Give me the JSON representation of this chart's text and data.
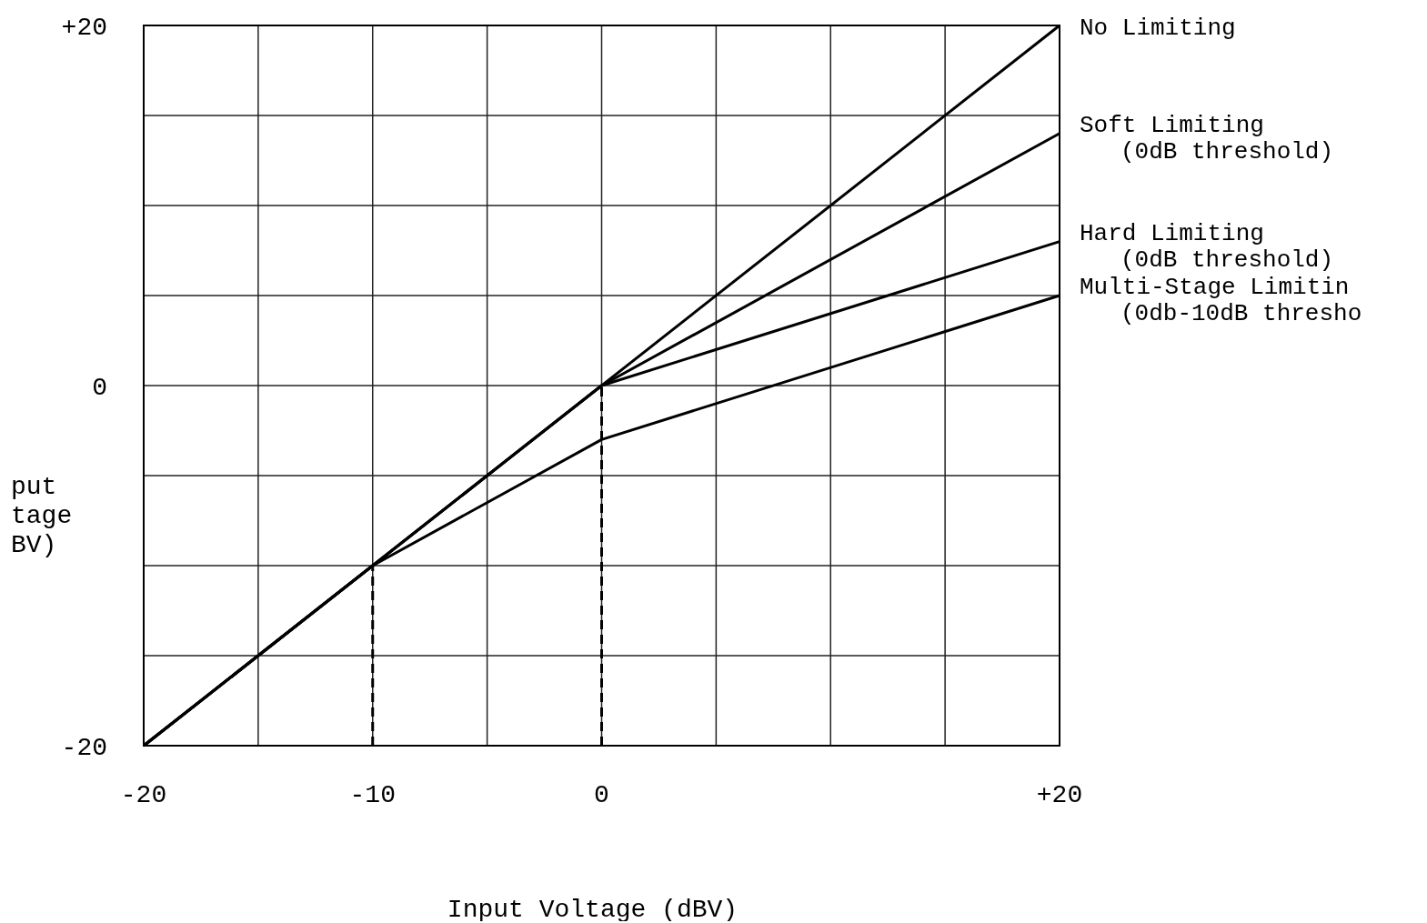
{
  "chart_data": {
    "type": "line",
    "xlabel": "Input Voltage (dBV)",
    "ylabel": "put\ntage\nBV)",
    "xlim": [
      -20,
      20
    ],
    "ylim": [
      -20,
      20
    ],
    "xticks": [
      -20,
      {
        "value": -15,
        "label": null
      },
      -10,
      {
        "value": -5,
        "label": null
      },
      0,
      {
        "value": 5,
        "label": null
      },
      {
        "value": 10,
        "label": null
      },
      {
        "value": 15,
        "label": null
      },
      {
        "value": 20,
        "label": "+20"
      }
    ],
    "yticks": [
      -20,
      {
        "value": -15,
        "label": null
      },
      {
        "value": -10,
        "label": null
      },
      {
        "value": -5,
        "label": null
      },
      0,
      {
        "value": 5,
        "label": null
      },
      {
        "value": 10,
        "label": null
      },
      {
        "value": 15,
        "label": null
      },
      {
        "value": 20,
        "label": "+20"
      }
    ],
    "grid": true,
    "marker": "none",
    "line_style": "solid",
    "ref_lines": [
      {
        "axis": "x",
        "value": -10,
        "line_style": "dashed",
        "color": "#000000"
      },
      {
        "axis": "x",
        "value": 0,
        "line_style": "dashed",
        "color": "#000000"
      }
    ],
    "series": [
      {
        "name": "No Limiting",
        "color": "#000000",
        "x": [
          -20,
          20
        ],
        "values": [
          -20,
          20
        ]
      },
      {
        "name": "Soft Limiting\n(0dB threshold)",
        "color": "#000000",
        "x": [
          -20,
          0,
          20
        ],
        "values": [
          -20,
          0,
          14
        ]
      },
      {
        "name": "Hard Limiting\n(0dB threshold)",
        "color": "#000000",
        "x": [
          -20,
          0,
          20
        ],
        "values": [
          -20,
          0,
          8
        ]
      },
      {
        "name": "Multi-Stage Limitin\n(0db-10dB thresho",
        "color": "#000000",
        "x": [
          -20,
          -10,
          0,
          20
        ],
        "values": [
          -20,
          -10,
          -3,
          5
        ]
      }
    ]
  }
}
